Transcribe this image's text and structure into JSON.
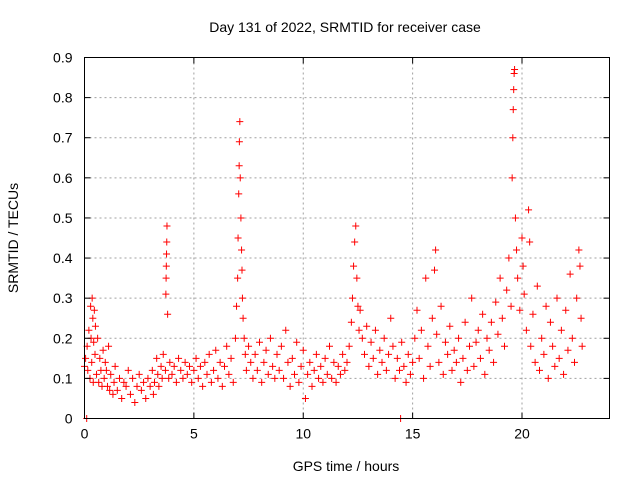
{
  "chart_data": {
    "type": "scatter",
    "title": "Day 131 of 2022, SRMTID for receiver case",
    "xlabel": "GPS time / hours",
    "ylabel": "SRMTID / TECUs",
    "xlim": [
      0,
      24
    ],
    "ylim": [
      0,
      0.9
    ],
    "xticks": [
      0,
      5,
      10,
      15,
      20
    ],
    "xtick_labels": [
      "0",
      "5",
      "10",
      "15",
      "20"
    ],
    "yticks": [
      0,
      0.1,
      0.2,
      0.3,
      0.4,
      0.5,
      0.6,
      0.7,
      0.8,
      0.9
    ],
    "ytick_labels": [
      "0",
      "0.1",
      "0.2",
      "0.3",
      "0.4",
      "0.5",
      "0.6",
      "0.7",
      "0.8",
      "0.9"
    ],
    "grid": true,
    "marker": "plus",
    "color": "#ff0000",
    "series": [
      {
        "name": "SRMTID",
        "points": [
          [
            0.0,
            0.13
          ],
          [
            0.05,
            0.15
          ],
          [
            0.1,
            0.0
          ],
          [
            0.12,
            0.18
          ],
          [
            0.15,
            0.12
          ],
          [
            0.2,
            0.22
          ],
          [
            0.25,
            0.1
          ],
          [
            0.28,
            0.28
          ],
          [
            0.3,
            0.2
          ],
          [
            0.33,
            0.14
          ],
          [
            0.35,
            0.3
          ],
          [
            0.38,
            0.25
          ],
          [
            0.4,
            0.09
          ],
          [
            0.42,
            0.19
          ],
          [
            0.45,
            0.27
          ],
          [
            0.48,
            0.16
          ],
          [
            0.5,
            0.23
          ],
          [
            0.55,
            0.11
          ],
          [
            0.6,
            0.2
          ],
          [
            0.65,
            0.09
          ],
          [
            0.7,
            0.15
          ],
          [
            0.75,
            0.12
          ],
          [
            0.8,
            0.08
          ],
          [
            0.85,
            0.17
          ],
          [
            0.9,
            0.1
          ],
          [
            0.95,
            0.14
          ],
          [
            1.0,
            0.12
          ],
          [
            1.05,
            0.08
          ],
          [
            1.1,
            0.18
          ],
          [
            1.15,
            0.07
          ],
          [
            1.2,
            0.11
          ],
          [
            1.3,
            0.06
          ],
          [
            1.35,
            0.09
          ],
          [
            1.4,
            0.13
          ],
          [
            1.5,
            0.07
          ],
          [
            1.6,
            0.1
          ],
          [
            1.7,
            0.05
          ],
          [
            1.8,
            0.09
          ],
          [
            1.9,
            0.08
          ],
          [
            2.0,
            0.12
          ],
          [
            2.1,
            0.06
          ],
          [
            2.2,
            0.1
          ],
          [
            2.3,
            0.04
          ],
          [
            2.4,
            0.08
          ],
          [
            2.5,
            0.11
          ],
          [
            2.6,
            0.07
          ],
          [
            2.7,
            0.09
          ],
          [
            2.8,
            0.05
          ],
          [
            2.9,
            0.1
          ],
          [
            3.0,
            0.08
          ],
          [
            3.1,
            0.12
          ],
          [
            3.15,
            0.06
          ],
          [
            3.2,
            0.09
          ],
          [
            3.3,
            0.15
          ],
          [
            3.35,
            0.11
          ],
          [
            3.4,
            0.08
          ],
          [
            3.5,
            0.13
          ],
          [
            3.55,
            0.1
          ],
          [
            3.6,
            0.16
          ],
          [
            3.7,
            0.12
          ],
          [
            3.72,
            0.31
          ],
          [
            3.73,
            0.35
          ],
          [
            3.74,
            0.38
          ],
          [
            3.75,
            0.41
          ],
          [
            3.76,
            0.44
          ],
          [
            3.77,
            0.48
          ],
          [
            3.8,
            0.26
          ],
          [
            3.85,
            0.1
          ],
          [
            3.9,
            0.14
          ],
          [
            4.0,
            0.11
          ],
          [
            4.1,
            0.13
          ],
          [
            4.2,
            0.09
          ],
          [
            4.3,
            0.15
          ],
          [
            4.4,
            0.12
          ],
          [
            4.5,
            0.1
          ],
          [
            4.6,
            0.14
          ],
          [
            4.7,
            0.11
          ],
          [
            4.8,
            0.13
          ],
          [
            4.9,
            0.09
          ],
          [
            5.0,
            0.12
          ],
          [
            5.1,
            0.15
          ],
          [
            5.2,
            0.1
          ],
          [
            5.3,
            0.13
          ],
          [
            5.4,
            0.08
          ],
          [
            5.5,
            0.14
          ],
          [
            5.6,
            0.11
          ],
          [
            5.7,
            0.16
          ],
          [
            5.8,
            0.09
          ],
          [
            5.9,
            0.12
          ],
          [
            6.0,
            0.17
          ],
          [
            6.1,
            0.1
          ],
          [
            6.2,
            0.14
          ],
          [
            6.3,
            0.08
          ],
          [
            6.4,
            0.13
          ],
          [
            6.5,
            0.18
          ],
          [
            6.6,
            0.11
          ],
          [
            6.7,
            0.15
          ],
          [
            6.8,
            0.09
          ],
          [
            6.9,
            0.2
          ],
          [
            6.95,
            0.28
          ],
          [
            7.0,
            0.35
          ],
          [
            7.02,
            0.45
          ],
          [
            7.05,
            0.56
          ],
          [
            7.07,
            0.63
          ],
          [
            7.08,
            0.69
          ],
          [
            7.1,
            0.74
          ],
          [
            7.12,
            0.6
          ],
          [
            7.15,
            0.5
          ],
          [
            7.18,
            0.42
          ],
          [
            7.2,
            0.37
          ],
          [
            7.22,
            0.3
          ],
          [
            7.25,
            0.25
          ],
          [
            7.3,
            0.2
          ],
          [
            7.35,
            0.16
          ],
          [
            7.4,
            0.12
          ],
          [
            7.5,
            0.18
          ],
          [
            7.6,
            0.14
          ],
          [
            7.7,
            0.1
          ],
          [
            7.8,
            0.16
          ],
          [
            7.9,
            0.12
          ],
          [
            8.0,
            0.19
          ],
          [
            8.1,
            0.09
          ],
          [
            8.2,
            0.14
          ],
          [
            8.3,
            0.17
          ],
          [
            8.4,
            0.11
          ],
          [
            8.5,
            0.2
          ],
          [
            8.6,
            0.13
          ],
          [
            8.7,
            0.1
          ],
          [
            8.8,
            0.16
          ],
          [
            8.9,
            0.12
          ],
          [
            9.0,
            0.18
          ],
          [
            9.1,
            0.1
          ],
          [
            9.2,
            0.22
          ],
          [
            9.3,
            0.14
          ],
          [
            9.4,
            0.08
          ],
          [
            9.5,
            0.15
          ],
          [
            9.6,
            0.11
          ],
          [
            9.7,
            0.19
          ],
          [
            9.8,
            0.09
          ],
          [
            9.9,
            0.13
          ],
          [
            10.0,
            0.17
          ],
          [
            10.1,
            0.05
          ],
          [
            10.2,
            0.11
          ],
          [
            10.3,
            0.14
          ],
          [
            10.4,
            0.08
          ],
          [
            10.5,
            0.12
          ],
          [
            10.6,
            0.16
          ],
          [
            10.7,
            0.1
          ],
          [
            10.8,
            0.13
          ],
          [
            10.9,
            0.09
          ],
          [
            11.0,
            0.15
          ],
          [
            11.1,
            0.11
          ],
          [
            11.2,
            0.18
          ],
          [
            11.3,
            0.1
          ],
          [
            11.4,
            0.14
          ],
          [
            11.5,
            0.09
          ],
          [
            11.6,
            0.13
          ],
          [
            11.7,
            0.11
          ],
          [
            11.8,
            0.16
          ],
          [
            11.9,
            0.12
          ],
          [
            12.0,
            0.14
          ],
          [
            12.1,
            0.18
          ],
          [
            12.2,
            0.24
          ],
          [
            12.25,
            0.3
          ],
          [
            12.3,
            0.38
          ],
          [
            12.35,
            0.44
          ],
          [
            12.4,
            0.48
          ],
          [
            12.45,
            0.35
          ],
          [
            12.5,
            0.28
          ],
          [
            12.55,
            0.22
          ],
          [
            12.6,
            0.27
          ],
          [
            12.7,
            0.2
          ],
          [
            12.8,
            0.16
          ],
          [
            12.9,
            0.23
          ],
          [
            13.0,
            0.13
          ],
          [
            13.1,
            0.19
          ],
          [
            13.2,
            0.15
          ],
          [
            13.3,
            0.22
          ],
          [
            13.4,
            0.11
          ],
          [
            13.5,
            0.17
          ],
          [
            13.6,
            0.14
          ],
          [
            13.7,
            0.2
          ],
          [
            13.8,
            0.12
          ],
          [
            13.9,
            0.16
          ],
          [
            14.0,
            0.25
          ],
          [
            14.1,
            0.18
          ],
          [
            14.2,
            0.1
          ],
          [
            14.3,
            0.15
          ],
          [
            14.4,
            0.12
          ],
          [
            14.45,
            0.0
          ],
          [
            14.5,
            0.19
          ],
          [
            14.6,
            0.13
          ],
          [
            14.7,
            0.09
          ],
          [
            14.8,
            0.16
          ],
          [
            14.9,
            0.11
          ],
          [
            15.0,
            0.14
          ],
          [
            15.1,
            0.2
          ],
          [
            15.2,
            0.27
          ],
          [
            15.3,
            0.15
          ],
          [
            15.4,
            0.22
          ],
          [
            15.5,
            0.1
          ],
          [
            15.6,
            0.35
          ],
          [
            15.7,
            0.18
          ],
          [
            15.8,
            0.13
          ],
          [
            15.9,
            0.25
          ],
          [
            16.0,
            0.37
          ],
          [
            16.05,
            0.42
          ],
          [
            16.1,
            0.21
          ],
          [
            16.2,
            0.14
          ],
          [
            16.3,
            0.28
          ],
          [
            16.4,
            0.11
          ],
          [
            16.5,
            0.19
          ],
          [
            16.6,
            0.16
          ],
          [
            16.7,
            0.23
          ],
          [
            16.8,
            0.12
          ],
          [
            16.9,
            0.17
          ],
          [
            17.0,
            0.14
          ],
          [
            17.1,
            0.2
          ],
          [
            17.2,
            0.09
          ],
          [
            17.3,
            0.15
          ],
          [
            17.4,
            0.24
          ],
          [
            17.5,
            0.12
          ],
          [
            17.6,
            0.18
          ],
          [
            17.7,
            0.3
          ],
          [
            17.8,
            0.13
          ],
          [
            17.9,
            0.19
          ],
          [
            18.0,
            0.22
          ],
          [
            18.1,
            0.15
          ],
          [
            18.2,
            0.26
          ],
          [
            18.3,
            0.11
          ],
          [
            18.4,
            0.2
          ],
          [
            18.5,
            0.17
          ],
          [
            18.6,
            0.24
          ],
          [
            18.7,
            0.14
          ],
          [
            18.8,
            0.29
          ],
          [
            18.9,
            0.21
          ],
          [
            19.0,
            0.35
          ],
          [
            19.1,
            0.25
          ],
          [
            19.2,
            0.18
          ],
          [
            19.3,
            0.32
          ],
          [
            19.4,
            0.4
          ],
          [
            19.5,
            0.28
          ],
          [
            19.55,
            0.6
          ],
          [
            19.58,
            0.7
          ],
          [
            19.6,
            0.77
          ],
          [
            19.62,
            0.82
          ],
          [
            19.64,
            0.86
          ],
          [
            19.66,
            0.87
          ],
          [
            19.7,
            0.5
          ],
          [
            19.75,
            0.42
          ],
          [
            19.8,
            0.35
          ],
          [
            19.9,
            0.27
          ],
          [
            20.0,
            0.45
          ],
          [
            20.05,
            0.38
          ],
          [
            20.1,
            0.31
          ],
          [
            20.2,
            0.22
          ],
          [
            20.3,
            0.52
          ],
          [
            20.35,
            0.44
          ],
          [
            20.4,
            0.18
          ],
          [
            20.5,
            0.26
          ],
          [
            20.6,
            0.14
          ],
          [
            20.7,
            0.33
          ],
          [
            20.8,
            0.12
          ],
          [
            20.9,
            0.2
          ],
          [
            21.0,
            0.16
          ],
          [
            21.1,
            0.28
          ],
          [
            21.2,
            0.1
          ],
          [
            21.3,
            0.24
          ],
          [
            21.4,
            0.18
          ],
          [
            21.5,
            0.13
          ],
          [
            21.6,
            0.3
          ],
          [
            21.7,
            0.15
          ],
          [
            21.8,
            0.22
          ],
          [
            21.9,
            0.11
          ],
          [
            22.0,
            0.27
          ],
          [
            22.1,
            0.17
          ],
          [
            22.2,
            0.36
          ],
          [
            22.3,
            0.2
          ],
          [
            22.4,
            0.14
          ],
          [
            22.5,
            0.3
          ],
          [
            22.6,
            0.42
          ],
          [
            22.65,
            0.38
          ],
          [
            22.7,
            0.25
          ],
          [
            22.75,
            0.18
          ]
        ]
      }
    ]
  }
}
